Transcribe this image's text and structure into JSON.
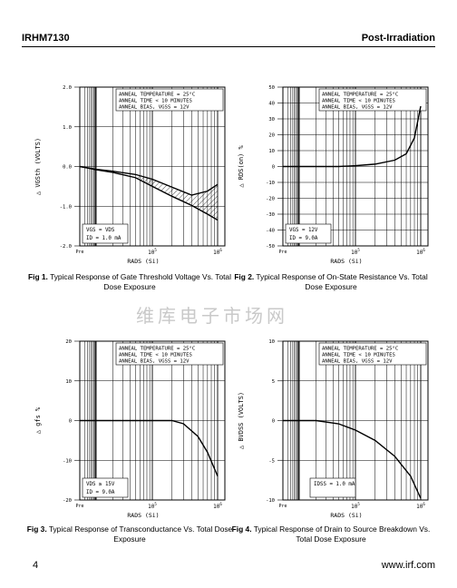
{
  "header": {
    "part_number": "IRHM7130",
    "section": "Post-Irradiation"
  },
  "watermark": "维库电子市场网",
  "footer": {
    "page": "4",
    "url": "www.irf.com"
  },
  "annotation": {
    "line1": "ANNEAL TEMPERATURE = 25°C",
    "line2": "ANNEAL TIME < 10 MINUTES",
    "line3": "ANNEAL BIAS, VGSS = 12V"
  },
  "x_axis": {
    "label": "RADS (Si)",
    "ticks": [
      "Pre",
      "10^5",
      "10^6"
    ]
  },
  "charts": [
    {
      "id": "fig1",
      "caption_num": "Fig 1.",
      "caption_text": "Typical Response of Gate Threshold Voltage Vs. Total Dose Exposure",
      "ylabel": "△ VGSth (VOLTS)",
      "y_ticks": [
        "2.0",
        "1.0",
        "0.0",
        "-1.0",
        "-2.0"
      ],
      "ylim": [
        -2.0,
        2.0
      ],
      "cond1": "VGS = VDS",
      "cond2": "ID = 1.0 mA"
    },
    {
      "id": "fig2",
      "caption_num": "Fig 2.",
      "caption_text": "Typical Response of On-State Resistance Vs. Total Dose Exposure",
      "ylabel": "△ RDS(on) %",
      "y_ticks": [
        "50",
        "40",
        "30",
        "20",
        "10",
        "0",
        "-10",
        "-20",
        "-30",
        "-40",
        "-50"
      ],
      "ylim": [
        -50,
        50
      ],
      "cond1": "VGS = 12V",
      "cond2": "ID = 9.0A"
    },
    {
      "id": "fig3",
      "caption_num": "Fig 3.",
      "caption_text": "Typical Response of Transconductance Vs. Total Dose Exposure",
      "ylabel": "△ gfs %",
      "y_ticks": [
        "20",
        "10",
        "0",
        "-10",
        "-20"
      ],
      "ylim": [
        -20,
        20
      ],
      "cond1": "VDS ≥ 15V",
      "cond2": "ID = 9.0A"
    },
    {
      "id": "fig4",
      "caption_num": "Fig 4.",
      "caption_text": "Typical Response of Drain to Source Breakdown Vs. Total Dose Exposure",
      "ylabel": "△ BVDSS (VOLTS)",
      "y_ticks": [
        "10",
        "5",
        "0",
        "-5",
        "-10"
      ],
      "ylim": [
        -10,
        10
      ],
      "cond1": "IDSS = 1.0 mA",
      "cond2": ""
    }
  ],
  "chart_data": [
    {
      "type": "line",
      "title": "",
      "xlabel": "RADS (Si)",
      "ylabel": "△ VGSth (VOLTS)",
      "xscale": "log",
      "ylim": [
        -2.0,
        2.0
      ],
      "grid": true,
      "series": [
        {
          "x": [
            "Pre",
            10000,
            20000,
            50000,
            100000,
            200000,
            400000,
            700000,
            1000000
          ],
          "y": [
            0.0,
            -0.08,
            -0.15,
            -0.28,
            -0.5,
            -0.75,
            -0.98,
            -1.2,
            -1.35
          ]
        },
        {
          "x": [
            "Pre",
            10000,
            20000,
            50000,
            100000,
            200000,
            400000,
            700000,
            1000000
          ],
          "y": [
            0.0,
            -0.07,
            -0.12,
            -0.2,
            -0.32,
            -0.52,
            -0.72,
            -0.62,
            -0.45
          ]
        }
      ]
    },
    {
      "type": "line",
      "title": "",
      "xlabel": "RADS (Si)",
      "ylabel": "△ RDS(on) %",
      "xscale": "log",
      "ylim": [
        -50,
        50
      ],
      "grid": true,
      "series": [
        {
          "x": [
            "Pre",
            10000,
            50000,
            100000,
            200000,
            400000,
            600000,
            800000,
            1000000
          ],
          "y": [
            0,
            0,
            0,
            0.5,
            1.5,
            4,
            8,
            18,
            38
          ]
        }
      ]
    },
    {
      "type": "line",
      "title": "",
      "xlabel": "RADS (Si)",
      "ylabel": "△ gfs %",
      "xscale": "log",
      "ylim": [
        -20,
        20
      ],
      "grid": true,
      "series": [
        {
          "x": [
            "Pre",
            10000,
            50000,
            100000,
            200000,
            300000,
            500000,
            700000,
            1000000
          ],
          "y": [
            0,
            0,
            0,
            0,
            0,
            -0.8,
            -4,
            -8,
            -14
          ]
        }
      ]
    },
    {
      "type": "line",
      "title": "",
      "xlabel": "RADS (Si)",
      "ylabel": "△ BVDSS (VOLTS)",
      "xscale": "log",
      "ylim": [
        -10,
        10
      ],
      "grid": true,
      "series": [
        {
          "x": [
            "Pre",
            10000,
            20000,
            50000,
            100000,
            200000,
            400000,
            700000,
            1000000
          ],
          "y": [
            0,
            0,
            0,
            -0.4,
            -1.2,
            -2.5,
            -4.5,
            -7,
            -9.8
          ]
        }
      ]
    }
  ]
}
